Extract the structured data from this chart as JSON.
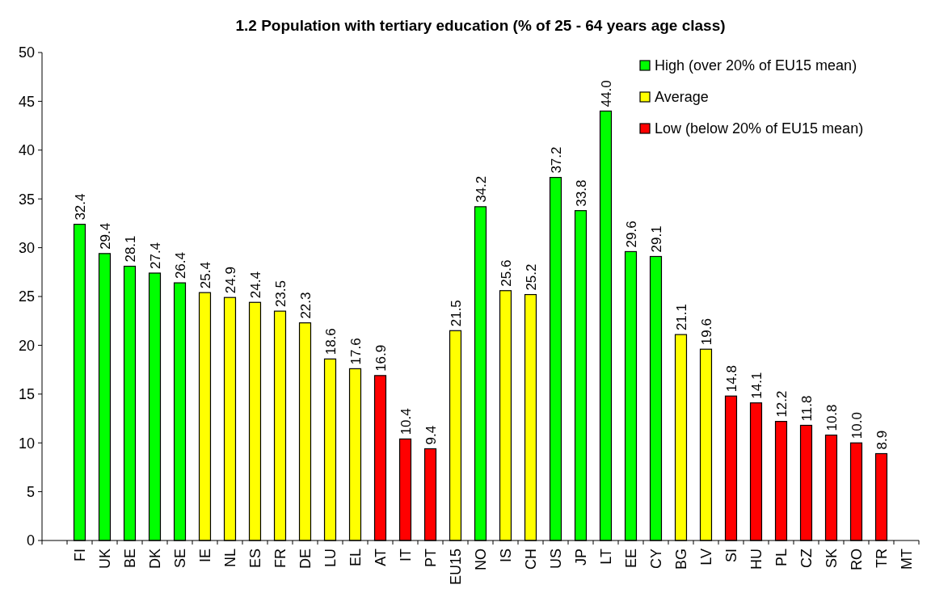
{
  "chart_data": {
    "type": "bar",
    "title": "1.2 Population with tertiary education (% of 25 - 64 years age class)",
    "categories": [
      null,
      "FI",
      "UK",
      "BE",
      "DK",
      "SE",
      "IE",
      "NL",
      "ES",
      "FR",
      "DE",
      "LU",
      "EL",
      "AT",
      "IT",
      "PT",
      "EU15",
      "NO",
      "IS",
      "CH",
      "US",
      "JP",
      "LT",
      "EE",
      "CY",
      "BG",
      "LV",
      "SI",
      "HU",
      "PL",
      "CZ",
      "SK",
      "RO",
      "TR",
      "MT"
    ],
    "stacked": true,
    "series": [
      {
        "name": "High (over 20% of EU15 mean)",
        "color": "#00ff00",
        "values": [
          null,
          32.4,
          29.4,
          28.1,
          27.4,
          26.4,
          null,
          null,
          null,
          null,
          null,
          null,
          null,
          null,
          null,
          null,
          null,
          34.2,
          null,
          null,
          37.2,
          33.8,
          44.0,
          29.6,
          29.1,
          null,
          null,
          null,
          null,
          null,
          null,
          null,
          null,
          null,
          null
        ],
        "value_labels": [
          null,
          "32.4",
          "29.4",
          "28.1",
          "27.4",
          "26.4",
          null,
          null,
          null,
          null,
          null,
          null,
          null,
          null,
          null,
          null,
          null,
          "34.2",
          null,
          null,
          "37.2",
          "33.8",
          "44.0",
          "29.6",
          "29.1",
          null,
          null,
          null,
          null,
          null,
          null,
          null,
          null,
          null,
          null
        ]
      },
      {
        "name": "Average",
        "color": "#ffff00",
        "values": [
          null,
          null,
          null,
          null,
          null,
          null,
          25.4,
          24.9,
          24.4,
          23.5,
          22.3,
          18.6,
          17.6,
          null,
          null,
          null,
          21.5,
          null,
          25.6,
          25.2,
          null,
          null,
          null,
          null,
          null,
          21.1,
          19.6,
          null,
          null,
          null,
          null,
          null,
          null,
          null,
          null
        ],
        "value_labels": [
          null,
          null,
          null,
          null,
          null,
          null,
          "25.4",
          "24.9",
          "24.4",
          "23.5",
          "22.3",
          "18.6",
          "17.6",
          null,
          null,
          null,
          "21.5",
          null,
          "25.6",
          "25.2",
          null,
          null,
          null,
          null,
          null,
          "21.1",
          "19.6",
          null,
          null,
          null,
          null,
          null,
          null,
          null,
          null
        ]
      },
      {
        "name": "Low (below 20% of EU15 mean)",
        "color": "#ff0000",
        "values": [
          null,
          null,
          null,
          null,
          null,
          null,
          null,
          null,
          null,
          null,
          null,
          null,
          null,
          16.9,
          10.4,
          9.4,
          null,
          null,
          null,
          null,
          null,
          null,
          null,
          null,
          null,
          null,
          null,
          14.8,
          14.1,
          12.2,
          11.8,
          10.8,
          10.0,
          8.9,
          null
        ],
        "value_labels": [
          null,
          null,
          null,
          null,
          null,
          null,
          null,
          null,
          null,
          null,
          null,
          null,
          null,
          "16.9",
          "10.4",
          "9.4",
          null,
          null,
          null,
          null,
          null,
          null,
          null,
          null,
          null,
          null,
          null,
          "14.8",
          "14.1",
          "12.2",
          "11.8",
          "10.8",
          "10.0",
          "8.9",
          null
        ]
      }
    ],
    "ylim": [
      0,
      50
    ],
    "yticks": [
      0,
      5,
      10,
      15,
      20,
      25,
      30,
      35,
      40,
      45,
      50
    ],
    "legend": "top right"
  }
}
